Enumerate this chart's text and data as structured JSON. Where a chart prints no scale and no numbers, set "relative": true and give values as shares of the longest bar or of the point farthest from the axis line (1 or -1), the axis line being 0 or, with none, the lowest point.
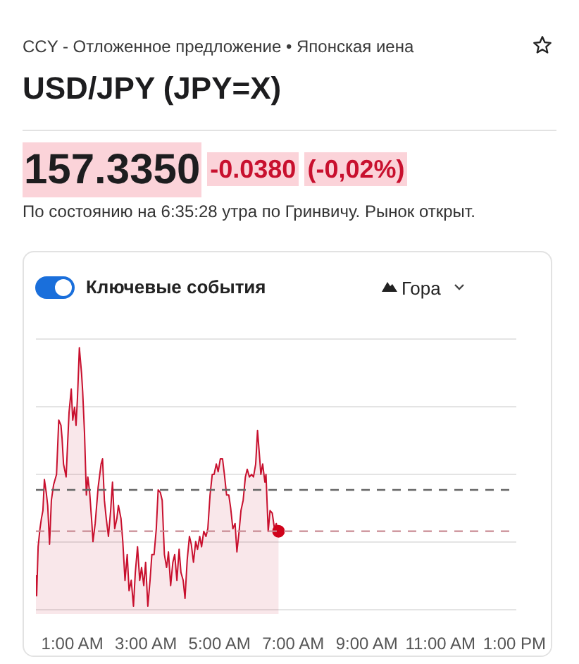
{
  "chart_data": {
    "type": "area",
    "title": "USD/JPY (JPY=X)",
    "subtitle": "CCY - Отложенное предложение • Японская иена",
    "annotations": [
      "157.3350",
      "-0.0380",
      "(-0,02%)",
      "По состоянию на 6:35:28 утра по Гринвичу. Рынок открыт.",
      "Ключевые события",
      "Гора"
    ],
    "relative": true,
    "grid": "y",
    "xlim": [
      0,
      13.05
    ],
    "xticks": [
      {
        "value": 1,
        "label": "1:00 AM"
      },
      {
        "value": 3,
        "label": "3:00 AM"
      },
      {
        "value": 5,
        "label": "5:00 AM"
      },
      {
        "value": 7,
        "label": "7:00 AM"
      },
      {
        "value": 9,
        "label": "9:00 AM"
      },
      {
        "value": 11,
        "label": "11:00 AM"
      },
      {
        "value": 13,
        "label": "1:00 PM"
      }
    ],
    "x": [
      0.0,
      0.02,
      0.06,
      0.11,
      0.15,
      0.19,
      0.23,
      0.28,
      0.32,
      0.37,
      0.42,
      0.48,
      0.56,
      0.62,
      0.68,
      0.71,
      0.75,
      0.82,
      0.9,
      0.96,
      1.0,
      1.05,
      1.09,
      1.13,
      1.18,
      1.24,
      1.27,
      1.32,
      1.37,
      1.41,
      1.46,
      1.52,
      1.55,
      1.61,
      1.69,
      1.77,
      1.81,
      1.86,
      1.91,
      1.97,
      2.03,
      2.08,
      2.14,
      2.2,
      2.24,
      2.31,
      2.36,
      2.42,
      2.48,
      2.53,
      2.59,
      2.65,
      2.7,
      2.76,
      2.82,
      2.87,
      2.93,
      2.98,
      3.04,
      3.1,
      3.15,
      3.21,
      3.27,
      3.32,
      3.38,
      3.43,
      3.49,
      3.55,
      3.6,
      3.66,
      3.72,
      3.77,
      3.83,
      3.89,
      3.94,
      4.0,
      4.05,
      4.11,
      4.17,
      4.22,
      4.28,
      4.34,
      4.39,
      4.45,
      4.5,
      4.56,
      4.62,
      4.67,
      4.73,
      4.79,
      4.84,
      4.9,
      4.95,
      5.01,
      5.07,
      5.12,
      5.18,
      5.24,
      5.29,
      5.35,
      5.41,
      5.46,
      5.52,
      5.57,
      5.63,
      5.69,
      5.74,
      5.8,
      5.86,
      5.91,
      5.97,
      6.02,
      6.08,
      6.11,
      6.16,
      6.22,
      6.25,
      6.31,
      6.36,
      6.42,
      6.48,
      6.53,
      6.59
    ],
    "series": [
      {
        "color": "#c8102e",
        "values": [
          0.12,
          0.04,
          0.23,
          0.3,
          0.34,
          0.37,
          0.49,
          0.44,
          0.39,
          0.24,
          0.41,
          0.47,
          0.51,
          0.72,
          0.7,
          0.65,
          0.55,
          0.5,
          0.75,
          0.84,
          0.72,
          0.77,
          0.7,
          0.81,
          1.0,
          0.9,
          0.83,
          0.67,
          0.43,
          0.5,
          0.44,
          0.32,
          0.25,
          0.32,
          0.46,
          0.55,
          0.57,
          0.41,
          0.34,
          0.27,
          0.37,
          0.48,
          0.3,
          0.34,
          0.39,
          0.34,
          0.25,
          0.1,
          0.2,
          0.06,
          0.1,
          0.0,
          0.13,
          0.23,
          0.1,
          0.15,
          0.08,
          0.17,
          0.0,
          0.1,
          0.2,
          0.2,
          0.3,
          0.45,
          0.44,
          0.41,
          0.2,
          0.15,
          0.21,
          0.08,
          0.17,
          0.2,
          0.1,
          0.22,
          0.13,
          0.1,
          0.03,
          0.18,
          0.27,
          0.24,
          0.17,
          0.25,
          0.22,
          0.27,
          0.23,
          0.29,
          0.27,
          0.3,
          0.43,
          0.51,
          0.51,
          0.55,
          0.52,
          0.57,
          0.57,
          0.51,
          0.43,
          0.43,
          0.38,
          0.3,
          0.32,
          0.21,
          0.29,
          0.37,
          0.41,
          0.5,
          0.53,
          0.5,
          0.51,
          0.5,
          0.55,
          0.68,
          0.57,
          0.51,
          0.55,
          0.48,
          0.51,
          0.29,
          0.37,
          0.36,
          0.3,
          0.32,
          0.29
        ]
      },
      {
        "type": "scatter",
        "color": "#d0021b",
        "marker": "circle",
        "x": [
          6.59
        ],
        "values": [
          0.29
        ]
      }
    ],
    "ref_lines": [
      {
        "axis": "y",
        "value": 0.45,
        "color": "#666666",
        "line_style": "dashed"
      },
      {
        "axis": "y",
        "value": 0.29,
        "color": "#c98b94",
        "line_style": "dashed"
      }
    ]
  }
}
